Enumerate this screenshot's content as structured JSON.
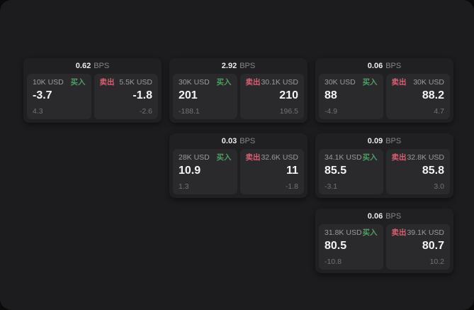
{
  "labels": {
    "bps_unit": "BPS",
    "buy": "买入",
    "sell": "卖出"
  },
  "colors": {
    "page_background": "#1c1c1e",
    "card_background": "#202022",
    "panel_background": "#2a2a2c",
    "buy_accent": "#4c9e63",
    "sell_accent": "#d95f72"
  },
  "cards": [
    {
      "bps": "0.62",
      "buy": {
        "amount": "10K USD",
        "price": "-3.7",
        "change": "4.3"
      },
      "sell": {
        "amount": "5.5K USD",
        "price": "-1.8",
        "change": "-2.6"
      }
    },
    {
      "bps": "2.92",
      "buy": {
        "amount": "30K USD",
        "price": "201",
        "change": "-188.1"
      },
      "sell": {
        "amount": "30.1K USD",
        "price": "210",
        "change": "196.5"
      }
    },
    {
      "bps": "0.06",
      "buy": {
        "amount": "30K USD",
        "price": "88",
        "change": "-4.9"
      },
      "sell": {
        "amount": "30K USD",
        "price": "88.2",
        "change": "4.7"
      }
    },
    {
      "bps": "0.03",
      "buy": {
        "amount": "28K USD",
        "price": "10.9",
        "change": "1.3"
      },
      "sell": {
        "amount": "32.6K USD",
        "price": "11",
        "change": "-1.8"
      }
    },
    {
      "bps": "0.09",
      "buy": {
        "amount": "34.1K USD",
        "price": "85.5",
        "change": "-3.1"
      },
      "sell": {
        "amount": "32.8K USD",
        "price": "85.8",
        "change": "3.0"
      }
    },
    {
      "bps": "0.06",
      "buy": {
        "amount": "31.8K USD",
        "price": "80.5",
        "change": "-10.8"
      },
      "sell": {
        "amount": "39.1K USD",
        "price": "80.7",
        "change": "10.2"
      }
    }
  ]
}
